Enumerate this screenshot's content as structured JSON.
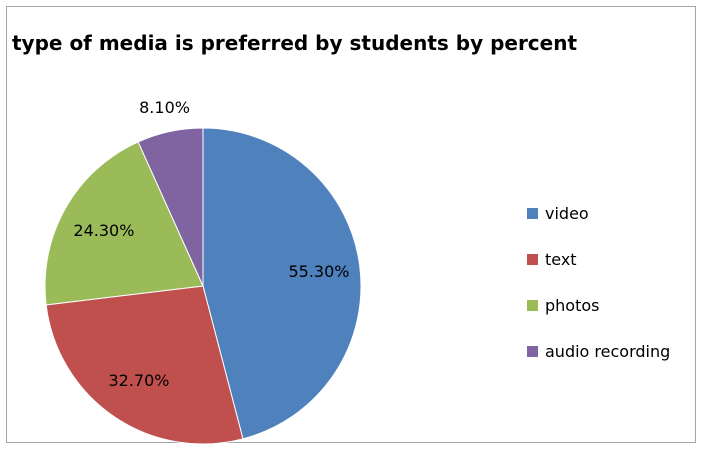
{
  "chart_data": {
    "type": "pie",
    "title": "type of media is preferred by students by percent",
    "categories": [
      "video",
      "text",
      "photos",
      "audio recording"
    ],
    "values": [
      55.3,
      32.7,
      24.3,
      8.1
    ],
    "labels": [
      "55.30%",
      "32.70%",
      "24.30%",
      "8.10%"
    ],
    "colors": [
      "#4f81bd",
      "#c0504d",
      "#9bbb59",
      "#8064a2"
    ],
    "legend": "right",
    "start_angle": "top, clockwise"
  }
}
